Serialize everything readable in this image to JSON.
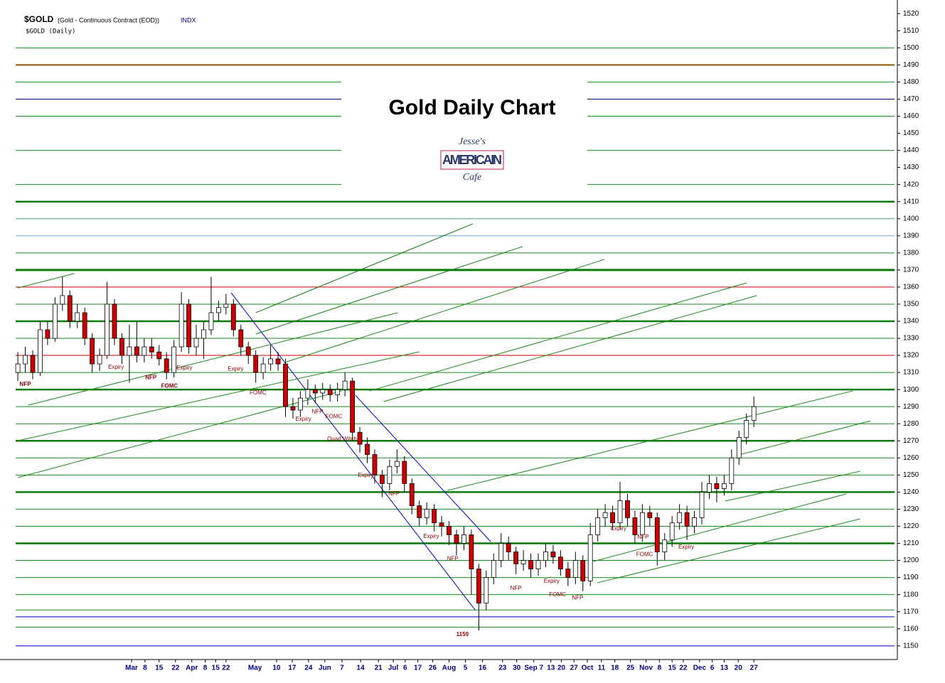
{
  "chart_data": {
    "type": "candlestick",
    "symbol": "$GOLD",
    "description": "(Gold - Continuous Contract (EOD))",
    "exchange": "INDX",
    "subtitle": "$GOLD (Daily)",
    "title": "Gold Daily Chart",
    "logo": {
      "line1": "Jesse's",
      "line2": "AMERICAIN",
      "line3": "Cafe"
    },
    "up_color": "#ffffff",
    "down_color": "#cc0000",
    "candles": [
      [
        1310,
        1322,
        1305,
        1315
      ],
      [
        1315,
        1325,
        1310,
        1320
      ],
      [
        1320,
        1323,
        1306,
        1310
      ],
      [
        1310,
        1340,
        1308,
        1335
      ],
      [
        1335,
        1340,
        1326,
        1330
      ],
      [
        1330,
        1354,
        1328,
        1350
      ],
      [
        1350,
        1366,
        1346,
        1355
      ],
      [
        1355,
        1358,
        1336,
        1340
      ],
      [
        1340,
        1350,
        1336,
        1345
      ],
      [
        1345,
        1348,
        1326,
        1330
      ],
      [
        1330,
        1333,
        1310,
        1315
      ],
      [
        1315,
        1324,
        1311,
        1320
      ],
      [
        1320,
        1363,
        1318,
        1350
      ],
      [
        1350,
        1353,
        1326,
        1330
      ],
      [
        1330,
        1333,
        1315,
        1320
      ],
      [
        1320,
        1338,
        1304,
        1325
      ],
      [
        1325,
        1340,
        1316,
        1320
      ],
      [
        1320,
        1330,
        1316,
        1325
      ],
      [
        1325,
        1330,
        1318,
        1322
      ],
      [
        1322,
        1326,
        1314,
        1318
      ],
      [
        1318,
        1322,
        1306,
        1310
      ],
      [
        1310,
        1329,
        1307,
        1325
      ],
      [
        1325,
        1357,
        1322,
        1350
      ],
      [
        1350,
        1353,
        1321,
        1325
      ],
      [
        1325,
        1338,
        1320,
        1330
      ],
      [
        1330,
        1340,
        1318,
        1335
      ],
      [
        1335,
        1366,
        1332,
        1345
      ],
      [
        1345,
        1352,
        1340,
        1348
      ],
      [
        1348,
        1356,
        1344,
        1350
      ],
      [
        1350,
        1353,
        1331,
        1335
      ],
      [
        1335,
        1338,
        1320,
        1325
      ],
      [
        1325,
        1328,
        1315,
        1320
      ],
      [
        1320,
        1323,
        1304,
        1310
      ],
      [
        1310,
        1319,
        1306,
        1315
      ],
      [
        1315,
        1326,
        1311,
        1318
      ],
      [
        1318,
        1322,
        1311,
        1315
      ],
      [
        1315,
        1318,
        1284,
        1290
      ],
      [
        1290,
        1295,
        1283,
        1288
      ],
      [
        1288,
        1299,
        1284,
        1295
      ],
      [
        1295,
        1306,
        1291,
        1300
      ],
      [
        1300,
        1303,
        1292,
        1298
      ],
      [
        1298,
        1304,
        1294,
        1300
      ],
      [
        1300,
        1303,
        1293,
        1297
      ],
      [
        1297,
        1304,
        1293,
        1300
      ],
      [
        1300,
        1310,
        1296,
        1305
      ],
      [
        1305,
        1307,
        1270,
        1275
      ],
      [
        1275,
        1278,
        1263,
        1268
      ],
      [
        1268,
        1272,
        1257,
        1262
      ],
      [
        1262,
        1265,
        1245,
        1250
      ],
      [
        1250,
        1253,
        1237,
        1245
      ],
      [
        1245,
        1259,
        1241,
        1255
      ],
      [
        1255,
        1265,
        1251,
        1258
      ],
      [
        1258,
        1261,
        1240,
        1245
      ],
      [
        1245,
        1248,
        1227,
        1232
      ],
      [
        1232,
        1235,
        1220,
        1225
      ],
      [
        1225,
        1234,
        1221,
        1230
      ],
      [
        1230,
        1233,
        1217,
        1222
      ],
      [
        1222,
        1226,
        1214,
        1220
      ],
      [
        1220,
        1223,
        1209,
        1215
      ],
      [
        1215,
        1218,
        1203,
        1210
      ],
      [
        1210,
        1220,
        1206,
        1215
      ],
      [
        1215,
        1218,
        1180,
        1195
      ],
      [
        1195,
        1198,
        1159,
        1175
      ],
      [
        1175,
        1194,
        1171,
        1190
      ],
      [
        1190,
        1204,
        1186,
        1200
      ],
      [
        1200,
        1216,
        1196,
        1210
      ],
      [
        1210,
        1214,
        1200,
        1205
      ],
      [
        1205,
        1208,
        1192,
        1198
      ],
      [
        1198,
        1206,
        1194,
        1200
      ],
      [
        1200,
        1204,
        1190,
        1195
      ],
      [
        1195,
        1204,
        1191,
        1200
      ],
      [
        1200,
        1210,
        1196,
        1205
      ],
      [
        1205,
        1209,
        1198,
        1202
      ],
      [
        1202,
        1206,
        1191,
        1195
      ],
      [
        1195,
        1199,
        1185,
        1190
      ],
      [
        1190,
        1205,
        1186,
        1200
      ],
      [
        1200,
        1203,
        1182,
        1188
      ],
      [
        1188,
        1222,
        1185,
        1215
      ],
      [
        1215,
        1230,
        1211,
        1225
      ],
      [
        1225,
        1233,
        1220,
        1228
      ],
      [
        1228,
        1232,
        1218,
        1222
      ],
      [
        1222,
        1246,
        1218,
        1235
      ],
      [
        1235,
        1239,
        1220,
        1225
      ],
      [
        1225,
        1229,
        1210,
        1215
      ],
      [
        1215,
        1233,
        1211,
        1228
      ],
      [
        1228,
        1232,
        1220,
        1225
      ],
      [
        1225,
        1228,
        1197,
        1205
      ],
      [
        1205,
        1216,
        1200,
        1212
      ],
      [
        1212,
        1226,
        1208,
        1222
      ],
      [
        1222,
        1233,
        1218,
        1228
      ],
      [
        1228,
        1232,
        1212,
        1220
      ],
      [
        1220,
        1229,
        1216,
        1225
      ],
      [
        1225,
        1246,
        1221,
        1240
      ],
      [
        1240,
        1250,
        1236,
        1245
      ],
      [
        1245,
        1249,
        1234,
        1242
      ],
      [
        1242,
        1250,
        1238,
        1245
      ],
      [
        1245,
        1265,
        1241,
        1260
      ],
      [
        1260,
        1276,
        1256,
        1272
      ],
      [
        1272,
        1286,
        1268,
        1282
      ],
      [
        1282,
        1296,
        1278,
        1290
      ]
    ],
    "xlim": [
      -2.4,
      118.3
    ],
    "ylim": [
      1142,
      1528
    ],
    "xticks": [
      {
        "value": 15.3,
        "label": "Mar"
      },
      {
        "value": 17.1,
        "label": "8"
      },
      {
        "value": 19.0,
        "label": "15"
      },
      {
        "value": 21.2,
        "label": "22"
      },
      {
        "value": 23.4,
        "label": "Apr"
      },
      {
        "value": 25.2,
        "label": "8"
      },
      {
        "value": 26.6,
        "label": "15"
      },
      {
        "value": 28.0,
        "label": "22"
      },
      {
        "value": 31.9,
        "label": "May"
      },
      {
        "value": 34.8,
        "label": "10"
      },
      {
        "value": 36.9,
        "label": "17"
      },
      {
        "value": 39.1,
        "label": "24"
      },
      {
        "value": 41.3,
        "label": "Jun"
      },
      {
        "value": 43.6,
        "label": "7"
      },
      {
        "value": 46.1,
        "label": "14"
      },
      {
        "value": 48.5,
        "label": "21"
      },
      {
        "value": 50.5,
        "label": "Jul"
      },
      {
        "value": 52.1,
        "label": "6"
      },
      {
        "value": 53.8,
        "label": "17"
      },
      {
        "value": 55.8,
        "label": "26"
      },
      {
        "value": 58.0,
        "label": "Aug"
      },
      {
        "value": 60.2,
        "label": "5"
      },
      {
        "value": 62.5,
        "label": "16"
      },
      {
        "value": 65.2,
        "label": "23"
      },
      {
        "value": 67.1,
        "label": "30"
      },
      {
        "value": 69.4,
        "label": "Sep 7"
      },
      {
        "value": 71.7,
        "label": "13"
      },
      {
        "value": 73.1,
        "label": "20"
      },
      {
        "value": 74.8,
        "label": "27"
      },
      {
        "value": 76.6,
        "label": "Oct"
      },
      {
        "value": 78.5,
        "label": "11"
      },
      {
        "value": 80.3,
        "label": "18"
      },
      {
        "value": 82.4,
        "label": "25"
      },
      {
        "value": 84.5,
        "label": "Nov"
      },
      {
        "value": 86.3,
        "label": "8"
      },
      {
        "value": 88.0,
        "label": "15"
      },
      {
        "value": 89.5,
        "label": "22"
      },
      {
        "value": 91.7,
        "label": "Dec"
      },
      {
        "value": 93.4,
        "label": "6"
      },
      {
        "value": 95.0,
        "label": "13"
      },
      {
        "value": 96.9,
        "label": "20"
      },
      {
        "value": 99.0,
        "label": "27"
      }
    ],
    "yticks": [
      1150,
      1160,
      1170,
      1180,
      1190,
      1200,
      1210,
      1220,
      1230,
      1240,
      1250,
      1260,
      1270,
      1280,
      1290,
      1300,
      1310,
      1320,
      1330,
      1340,
      1350,
      1360,
      1370,
      1380,
      1390,
      1400,
      1410,
      1420,
      1430,
      1440,
      1450,
      1460,
      1470,
      1480,
      1490,
      1500,
      1510,
      1520
    ],
    "levels": [
      {
        "value": 1500,
        "color": "#1a8a1a",
        "width": 1
      },
      {
        "value": 1490,
        "color": "#8b5a00",
        "width": 2
      },
      {
        "value": 1480,
        "color": "#1a8a1a",
        "width": 1
      },
      {
        "value": 1470,
        "color": "#000080",
        "width": 1
      },
      {
        "value": 1460,
        "color": "#1a8a1a",
        "width": 1
      },
      {
        "value": 1440,
        "color": "#1a8a1a",
        "width": 1
      },
      {
        "value": 1420,
        "color": "#1a8a1a",
        "width": 1
      },
      {
        "value": 1410,
        "color": "#0a7a0a",
        "width": 2.5
      },
      {
        "value": 1400,
        "color": "#3a9a7a",
        "width": 1
      },
      {
        "value": 1390,
        "color": "#6aaacc",
        "width": 1
      },
      {
        "value": 1380,
        "color": "#1a8a1a",
        "width": 1
      },
      {
        "value": 1370,
        "color": "#0a7a0a",
        "width": 3
      },
      {
        "value": 1360,
        "color": "#cc0000",
        "width": 1
      },
      {
        "value": 1350,
        "color": "#1a8a1a",
        "width": 1
      },
      {
        "value": 1340,
        "color": "#0a7a0a",
        "width": 2.5
      },
      {
        "value": 1330,
        "color": "#1a8a1a",
        "width": 1
      },
      {
        "value": 1320,
        "color": "#cc0000",
        "width": 1
      },
      {
        "value": 1310,
        "color": "#1a8a1a",
        "width": 1
      },
      {
        "value": 1300,
        "color": "#0a7a0a",
        "width": 2.5
      },
      {
        "value": 1290,
        "color": "#1a8a1a",
        "width": 1
      },
      {
        "value": 1280,
        "color": "#1a8a1a",
        "width": 1
      },
      {
        "value": 1270,
        "color": "#0a7a0a",
        "width": 2.5
      },
      {
        "value": 1260,
        "color": "#1a8a1a",
        "width": 1
      },
      {
        "value": 1250,
        "color": "#1a8a1a",
        "width": 1
      },
      {
        "value": 1240,
        "color": "#0a7a0a",
        "width": 2.5
      },
      {
        "value": 1230,
        "color": "#1a8a1a",
        "width": 1
      },
      {
        "value": 1220,
        "color": "#1a8a1a",
        "width": 1
      },
      {
        "value": 1210,
        "color": "#0a7a0a",
        "width": 2.5
      },
      {
        "value": 1200,
        "color": "#1a8a1a",
        "width": 1
      },
      {
        "value": 1190,
        "color": "#1a8a1a",
        "width": 1
      },
      {
        "value": 1180,
        "color": "#1a8a1a",
        "width": 1
      },
      {
        "value": 1171,
        "color": "#1a8a1a",
        "width": 1
      },
      {
        "value": 1167,
        "color": "#0000cc",
        "width": 1
      },
      {
        "value": 1161,
        "color": "#1a8a1a",
        "width": 1
      },
      {
        "value": 1150,
        "color": "#0000cc",
        "width": 1
      }
    ],
    "trendlines": [
      {
        "x1": 28.7,
        "y1": 1356.6,
        "x2": 61.5,
        "y2": 1171.1,
        "color": "#0000cc"
      },
      {
        "x1": 45.4,
        "y1": 1296.7,
        "x2": 63.6,
        "y2": 1211,
        "color": "#0000cc"
      },
      {
        "x1": 0,
        "y1": 1248.5,
        "x2": 43.5,
        "y2": 1299.2,
        "color": "#1a8a1a"
      },
      {
        "x1": 0,
        "y1": 1270.1,
        "x2": 54.0,
        "y2": 1322.1,
        "color": "#1a8a1a"
      },
      {
        "x1": 1.4,
        "y1": 1290.9,
        "x2": 51.1,
        "y2": 1345.0,
        "color": "#1a8a1a"
      },
      {
        "x1": 32.0,
        "y1": 1345.0,
        "x2": 61.2,
        "y2": 1397.0,
        "color": "#0a7a0a"
      },
      {
        "x1": 32.0,
        "y1": 1332.5,
        "x2": 67.9,
        "y2": 1383.7,
        "color": "#0a7a0a"
      },
      {
        "x1": 35.9,
        "y1": 1315.9,
        "x2": 78.9,
        "y2": 1376.2,
        "color": "#1a8a1a"
      },
      {
        "x1": 47.3,
        "y1": 1299.2,
        "x2": 98.0,
        "y2": 1362.4,
        "color": "#1a8a1a"
      },
      {
        "x1": 49.2,
        "y1": 1293.0,
        "x2": 99.4,
        "y2": 1355.0,
        "color": "#1a8a1a"
      },
      {
        "x1": 57.8,
        "y1": 1241.0,
        "x2": 112.3,
        "y2": 1299.2,
        "color": "#1a8a1a"
      },
      {
        "x1": 77.9,
        "y1": 1186.9,
        "x2": 113.3,
        "y2": 1224.3,
        "color": "#1a8a1a"
      },
      {
        "x1": 77.4,
        "y1": 1199.4,
        "x2": 111.4,
        "y2": 1238.9,
        "color": "#1a8a1a"
      },
      {
        "x1": 95.1,
        "y1": 1234.7,
        "x2": 113.3,
        "y2": 1252.2,
        "color": "#1a8a1a"
      },
      {
        "x1": 97.0,
        "y1": 1261.8,
        "x2": 114.7,
        "y2": 1281.7,
        "color": "#1a8a1a"
      },
      {
        "x1": 0,
        "y1": 1359.5,
        "x2": 7.6,
        "y2": 1367.9,
        "color": "#1a8a1a"
      }
    ],
    "annotations": [
      {
        "text": "NFP",
        "x": 1.0,
        "y": 1303,
        "bold": true
      },
      {
        "text": "Expiry",
        "x": 13.2,
        "y": 1313,
        "bold": false
      },
      {
        "text": "NFP",
        "x": 17.9,
        "y": 1307,
        "bold": true
      },
      {
        "text": "FOMC",
        "x": 20.4,
        "y": 1302,
        "bold": true
      },
      {
        "text": "Expiry",
        "x": 22.4,
        "y": 1312.5,
        "bold": false
      },
      {
        "text": "Expiry",
        "x": 29.3,
        "y": 1312,
        "bold": false
      },
      {
        "text": "FOMC",
        "x": 32.3,
        "y": 1298,
        "bold": false
      },
      {
        "text": "Expiry",
        "x": 38.4,
        "y": 1282.6,
        "bold": false
      },
      {
        "text": "NFP",
        "x": 40.3,
        "y": 1287,
        "bold": false
      },
      {
        "text": "FOMC",
        "x": 42.5,
        "y": 1284,
        "bold": false
      },
      {
        "text": "Quad Witch",
        "x": 43.6,
        "y": 1271,
        "bold": false
      },
      {
        "text": "Expiry",
        "x": 46.8,
        "y": 1249.7,
        "bold": false
      },
      {
        "text": "NFP",
        "x": 50.6,
        "y": 1239,
        "bold": false
      },
      {
        "text": "Expiry",
        "x": 55.6,
        "y": 1214,
        "bold": false
      },
      {
        "text": "NFP",
        "x": 58.5,
        "y": 1201,
        "bold": false
      },
      {
        "text": "NFP",
        "x": 67.0,
        "y": 1183.6,
        "bold": false
      },
      {
        "text": "Expiry",
        "x": 71.8,
        "y": 1187.7,
        "bold": false
      },
      {
        "text": "FOMC",
        "x": 72.6,
        "y": 1180,
        "bold": false
      },
      {
        "text": "NFP",
        "x": 75.3,
        "y": 1178,
        "bold": false
      },
      {
        "text": "Expiry",
        "x": 80.8,
        "y": 1218.5,
        "bold": false
      },
      {
        "text": "NFP",
        "x": 84.1,
        "y": 1213.5,
        "bold": false
      },
      {
        "text": "FOMC",
        "x": 84.3,
        "y": 1203.5,
        "bold": false
      },
      {
        "text": "Expiry",
        "x": 89.9,
        "y": 1207.7,
        "bold": false
      },
      {
        "text": "1159",
        "x": 59.8,
        "y": 1156.5,
        "bold": true
      }
    ]
  }
}
